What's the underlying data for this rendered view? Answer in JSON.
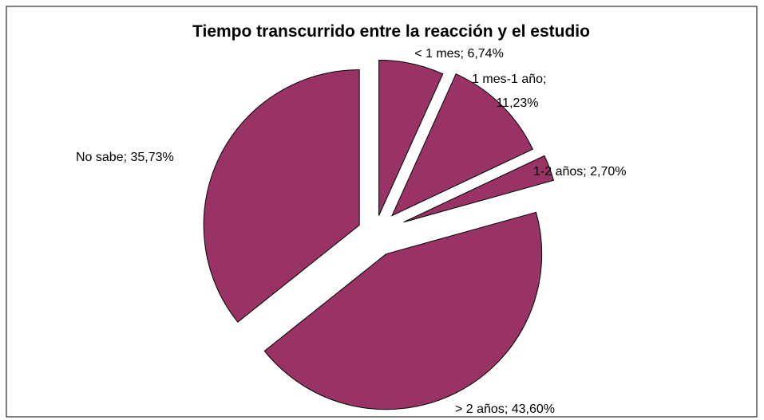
{
  "chart_data": {
    "type": "pie",
    "title": "Tiempo transcurrido entre la reacción y el estudio",
    "categories": [
      "< 1 mes",
      "1 mes-1 año",
      "1-2 años",
      "> 2 años",
      "No sabe"
    ],
    "values": [
      6.74,
      11.23,
      2.7,
      43.6,
      35.73
    ],
    "value_labels": [
      "6,74%",
      "11,23%",
      "2,70%",
      "43,60%",
      "35,73%"
    ],
    "label_separator": "; ",
    "color": "#993366"
  }
}
